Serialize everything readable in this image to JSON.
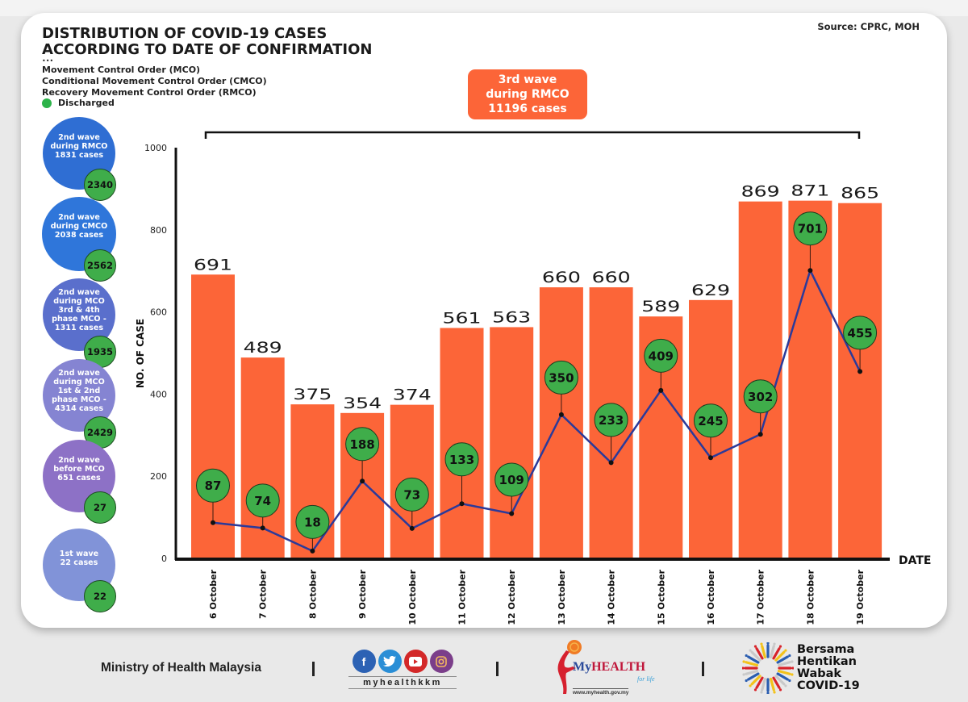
{
  "header": {
    "title_line1": "DISTRIBUTION OF COVID-19 CASES",
    "title_line2": "ACCORDING TO DATE OF CONFIRMATION",
    "dots": "•••",
    "legend_lines": [
      "Movement Control Order (MCO)",
      "Conditional Movement Control Order (CMCO)",
      "Recovery Movement Control Order (RMCO)"
    ],
    "legend_discharged": "Discharged",
    "source": "Source: CPRC, MOH"
  },
  "third_wave": {
    "line1": "3rd wave",
    "line2": "during RMCO",
    "line3": "11196 cases"
  },
  "wave_bubbles": [
    {
      "lines": [
        "2nd wave",
        "during RMCO",
        "1831 cases"
      ],
      "discharged": "2340",
      "color": "#2f6ed3"
    },
    {
      "lines": [
        "2nd wave",
        "during CMCO",
        "2038 cases"
      ],
      "discharged": "2562",
      "color": "#2f76da"
    },
    {
      "lines": [
        "2nd wave",
        "during MCO",
        "3rd & 4th",
        "phase MCO -",
        "1311 cases"
      ],
      "discharged": "1935",
      "color": "#5a6fcc"
    },
    {
      "lines": [
        "2nd wave",
        "during MCO",
        "1st & 2nd",
        "phase MCO -",
        "4314 cases"
      ],
      "discharged": "2429",
      "color": "#8584d2"
    },
    {
      "lines": [
        "2nd wave",
        "before MCO",
        "651 cases"
      ],
      "discharged": "27",
      "color": "#8d71c6"
    },
    {
      "lines": [
        "1st wave",
        "22 cases"
      ],
      "discharged": "22",
      "color": "#8193d8"
    }
  ],
  "colors": {
    "bar": "#fc6538",
    "line": "#2b3a9a",
    "discharged_bubble": "#3fad4a",
    "axis": "#111111"
  },
  "chart_data": {
    "type": "bar",
    "title": "DISTRIBUTION OF COVID-19 CASES ACCORDING TO DATE OF CONFIRMATION",
    "xlabel": "DATE",
    "ylabel": "NO. OF CASE",
    "ylim": [
      0,
      1000
    ],
    "yticks": [
      0,
      200,
      400,
      600,
      800,
      1000
    ],
    "grid": false,
    "categories": [
      "6 October",
      "7 October",
      "8 October",
      "9 October",
      "10 October",
      "11 October",
      "12 October",
      "13 October",
      "14 October",
      "15 October",
      "16 October",
      "17 October",
      "18 October",
      "19 October"
    ],
    "series": [
      {
        "name": "Cases",
        "type": "bar",
        "values": [
          691,
          489,
          375,
          354,
          374,
          561,
          563,
          660,
          660,
          589,
          629,
          869,
          871,
          865
        ]
      },
      {
        "name": "Discharged",
        "type": "line",
        "values": [
          87,
          74,
          18,
          188,
          73,
          133,
          109,
          350,
          233,
          409,
          245,
          302,
          701,
          455
        ]
      }
    ],
    "bracket_label": "3rd wave during RMCO 11196 cases"
  },
  "footer": {
    "ministry": "Ministry of Health Malaysia",
    "separator": "|",
    "social_handle": "myhealthkkm",
    "social_icons": [
      "facebook-icon",
      "twitter-icon",
      "youtube-icon",
      "instagram-icon"
    ],
    "myhealth_brand_my": "My",
    "myhealth_brand_health": "HEALTH",
    "myhealth_tagline": "for life",
    "myhealth_url": "www.myhealth.gov.my",
    "campaign_lines": [
      "Bersama",
      "Hentikan",
      "Wabak",
      "COVID-19"
    ]
  }
}
